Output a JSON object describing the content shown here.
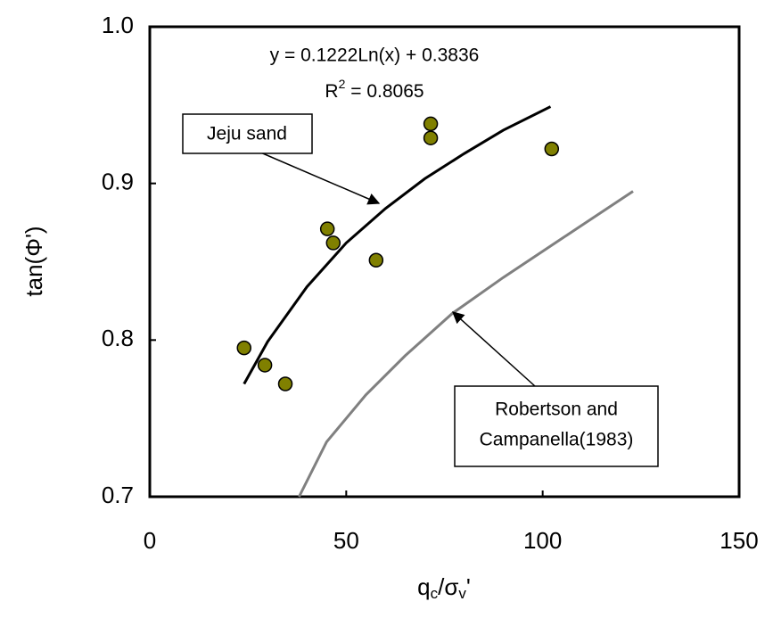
{
  "chart_data": {
    "type": "scatter",
    "xlabel_parts": [
      "q",
      "c",
      "/σ",
      "v",
      "'"
    ],
    "ylabel": "tan(Φ')",
    "xlim": [
      0,
      150
    ],
    "ylim": [
      0.7,
      1.0
    ],
    "xticks": [
      0,
      50,
      100,
      150
    ],
    "yticks": [
      0.7,
      0.8,
      0.9,
      {
        "value": 1.0,
        "label": "1.0"
      }
    ],
    "annotations": {
      "equation": "y = 0.1222Ln(x) + 0.3836",
      "r2": [
        "R",
        "2",
        " = 0.8065"
      ],
      "jeju": "Jeju sand",
      "robertson": [
        "Robertson and",
        "Campanella(1983)"
      ]
    },
    "series": [
      {
        "type": "scatter",
        "color": "#808000",
        "x": [
          24,
          29.3,
          34.5,
          45.2,
          46.7,
          57.6,
          71.5,
          71.5,
          102.3
        ],
        "values": [
          0.795,
          0.784,
          0.772,
          0.871,
          0.862,
          0.851,
          0.938,
          0.929,
          0.922
        ]
      },
      {
        "type": "line",
        "color": "#000000",
        "x": [
          24,
          30,
          40,
          50,
          60,
          70,
          80,
          90,
          102
        ],
        "values": [
          0.772,
          0.799,
          0.834,
          0.862,
          0.884,
          0.903,
          0.919,
          0.934,
          0.949
        ]
      },
      {
        "type": "line",
        "color": "#808080",
        "x": [
          38,
          45,
          55,
          65,
          77,
          90,
          105,
          123
        ],
        "values": [
          0.7,
          0.735,
          0.765,
          0.79,
          0.817,
          0.84,
          0.865,
          0.895
        ]
      }
    ]
  }
}
